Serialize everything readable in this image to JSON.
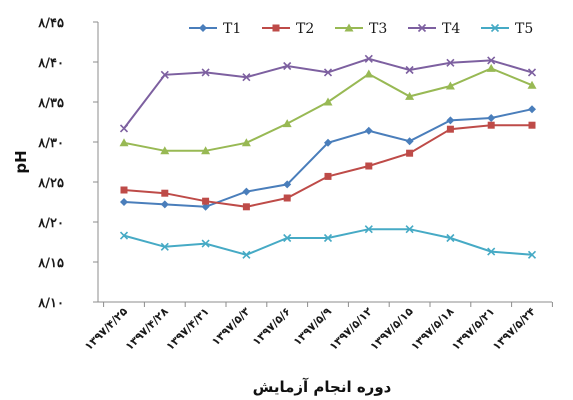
{
  "chart_data": {
    "type": "line",
    "title": "",
    "xlabel": "دوره انجام آزمایش",
    "ylabel": "pH",
    "ylim": [
      8.1,
      8.45
    ],
    "yticks": [
      8.1,
      8.15,
      8.2,
      8.25,
      8.3,
      8.35,
      8.4,
      8.45
    ],
    "ytick_labels": [
      "۸/۱۰",
      "۸/۱۵",
      "۸/۲۰",
      "۸/۲۵",
      "۸/۳۰",
      "۸/۳۵",
      "۸/۴۰",
      "۸/۴۵"
    ],
    "categories": [
      "۱۳۹۷/۴/۲۵",
      "۱۳۹۷/۴/۲۸",
      "۱۳۹۷/۴/۳۱",
      "۱۳۹۷/۵/۳",
      "۱۳۹۷/۵/۶",
      "۱۳۹۷/۵/۹",
      "۱۳۹۷/۵/۱۲",
      "۱۳۹۷/۵/۱۵",
      "۱۳۹۷/۵/۱۸",
      "۱۳۹۷/۵/۲۱",
      "۱۳۹۷/۵/۲۴"
    ],
    "grid": false,
    "legend_position": "top",
    "series": [
      {
        "name": "T1",
        "color": "#4a7ebb",
        "marker": "diamond",
        "values": [
          8.225,
          8.222,
          8.219,
          8.238,
          8.247,
          8.299,
          8.314,
          8.301,
          8.327,
          8.33,
          8.341
        ]
      },
      {
        "name": "T2",
        "color": "#be4b48",
        "marker": "square",
        "values": [
          8.24,
          8.236,
          8.226,
          8.219,
          8.23,
          8.257,
          8.27,
          8.286,
          8.316,
          8.321,
          8.321
        ]
      },
      {
        "name": "T3",
        "color": "#98b954",
        "marker": "triangle",
        "values": [
          8.299,
          8.289,
          8.289,
          8.299,
          8.323,
          8.35,
          8.385,
          8.357,
          8.37,
          8.392,
          8.371
        ]
      },
      {
        "name": "T4",
        "color": "#7d60a0",
        "marker": "x",
        "values": [
          8.317,
          8.384,
          8.387,
          8.381,
          8.395,
          8.387,
          8.404,
          8.39,
          8.399,
          8.402,
          8.387
        ]
      },
      {
        "name": "T5",
        "color": "#46aac5",
        "marker": "x",
        "values": [
          8.183,
          8.169,
          8.173,
          8.159,
          8.18,
          8.18,
          8.191,
          8.191,
          8.18,
          8.163,
          8.159
        ]
      }
    ]
  }
}
